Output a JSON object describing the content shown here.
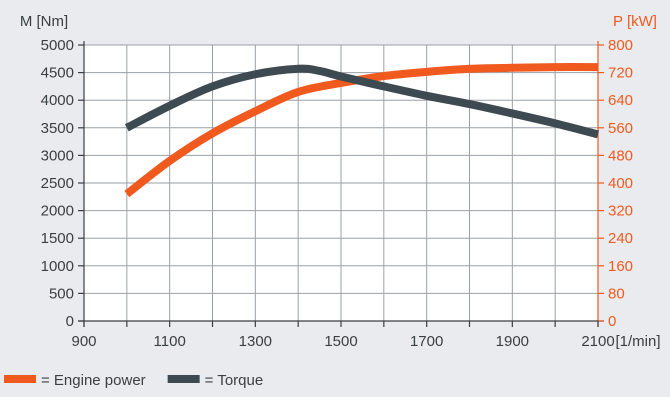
{
  "chart_data": {
    "type": "line",
    "x_label": "[1/min]",
    "y_left_label": "M [Nm]",
    "y_right_label": "P [kW]",
    "x_ticks": [
      900,
      1100,
      1300,
      1500,
      1700,
      1900,
      2100
    ],
    "x_grid_step": 100,
    "xlim": [
      900,
      2100
    ],
    "y_left_ticks": [
      0,
      500,
      1000,
      1500,
      2000,
      2500,
      3000,
      3500,
      4000,
      4500,
      5000
    ],
    "y_left_lim": [
      0,
      5000
    ],
    "y_right_ticks": [
      0,
      80,
      160,
      240,
      320,
      400,
      480,
      560,
      640,
      720,
      800
    ],
    "y_right_lim": [
      0,
      800
    ],
    "grid": true,
    "legend_position": "bottom-left",
    "series": [
      {
        "name": "Engine power",
        "legend_label": "= Engine power",
        "axis": "right",
        "color": "#f05a1e",
        "x": [
          1000,
          1100,
          1200,
          1300,
          1400,
          1500,
          1600,
          1700,
          1800,
          1900,
          2000,
          2100
        ],
        "y": [
          368,
          464,
          544,
          608,
          664,
          690,
          710,
          722,
          731,
          734,
          736,
          736
        ]
      },
      {
        "name": "Torque",
        "legend_label": "= Torque",
        "axis": "left",
        "color": "#3e4a52",
        "x": [
          1000,
          1100,
          1200,
          1300,
          1400,
          1450,
          1500,
          1600,
          1700,
          1800,
          1900,
          2000,
          2100
        ],
        "y": [
          3500,
          3900,
          4250,
          4470,
          4570,
          4530,
          4430,
          4250,
          4080,
          3930,
          3760,
          3580,
          3380
        ]
      }
    ]
  }
}
